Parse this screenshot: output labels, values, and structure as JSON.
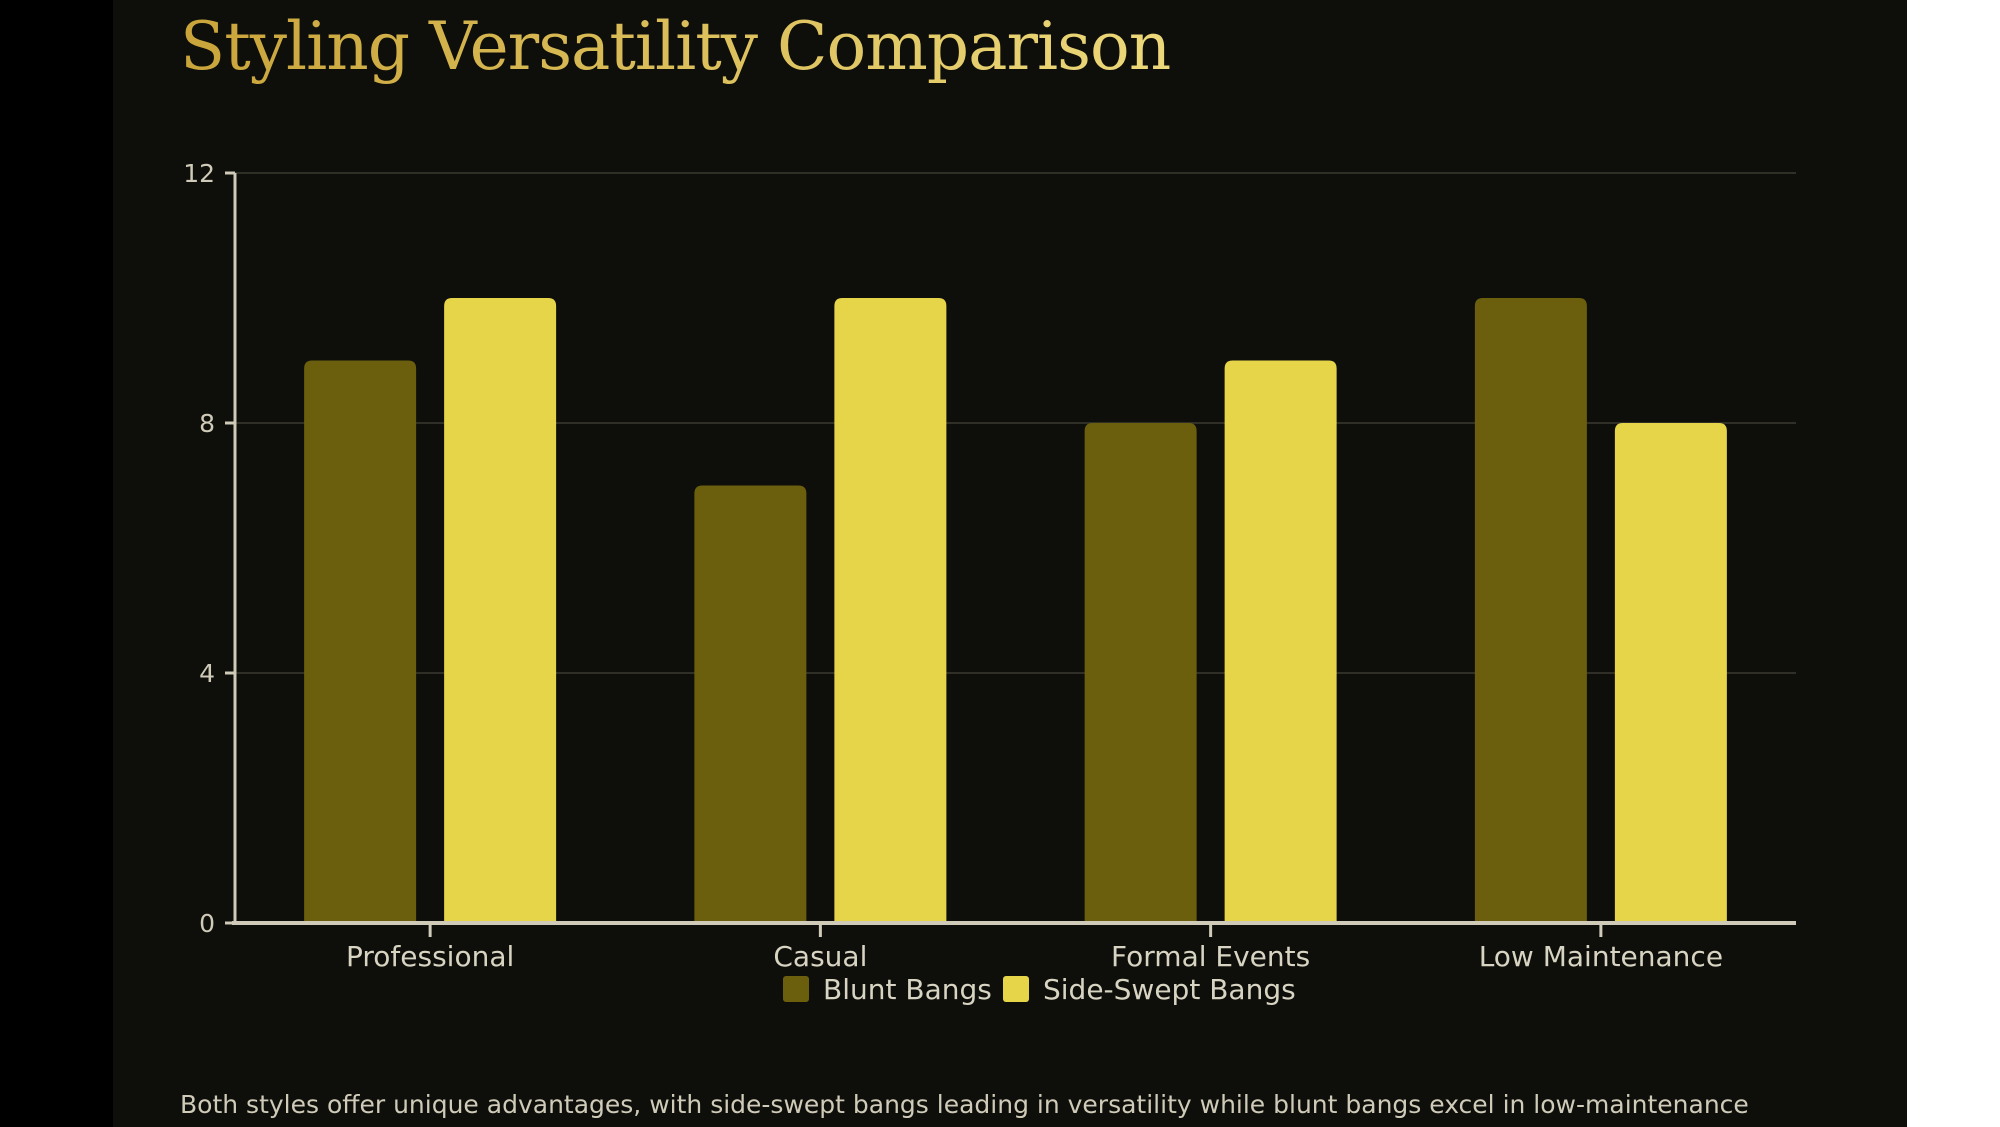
{
  "title": "Styling Versatility Comparison",
  "footer": "Both styles offer unique advantages, with side-swept bangs leading in versatility while blunt bangs excel in low-maintenance",
  "chart_data": {
    "type": "bar",
    "title": "Styling Versatility Comparison",
    "categories": [
      "Professional",
      "Casual",
      "Formal Events",
      "Low Maintenance"
    ],
    "series": [
      {
        "name": "Blunt Bangs",
        "values": [
          9,
          7,
          8,
          10
        ],
        "color": "#6b5f0d"
      },
      {
        "name": "Side-Swept Bangs",
        "values": [
          10,
          10,
          9,
          8
        ],
        "color": "#e6d548"
      }
    ],
    "ylim": [
      0,
      12
    ],
    "yticks": [
      0,
      4,
      8,
      12
    ],
    "grid": true,
    "legend": "bottom-center"
  }
}
